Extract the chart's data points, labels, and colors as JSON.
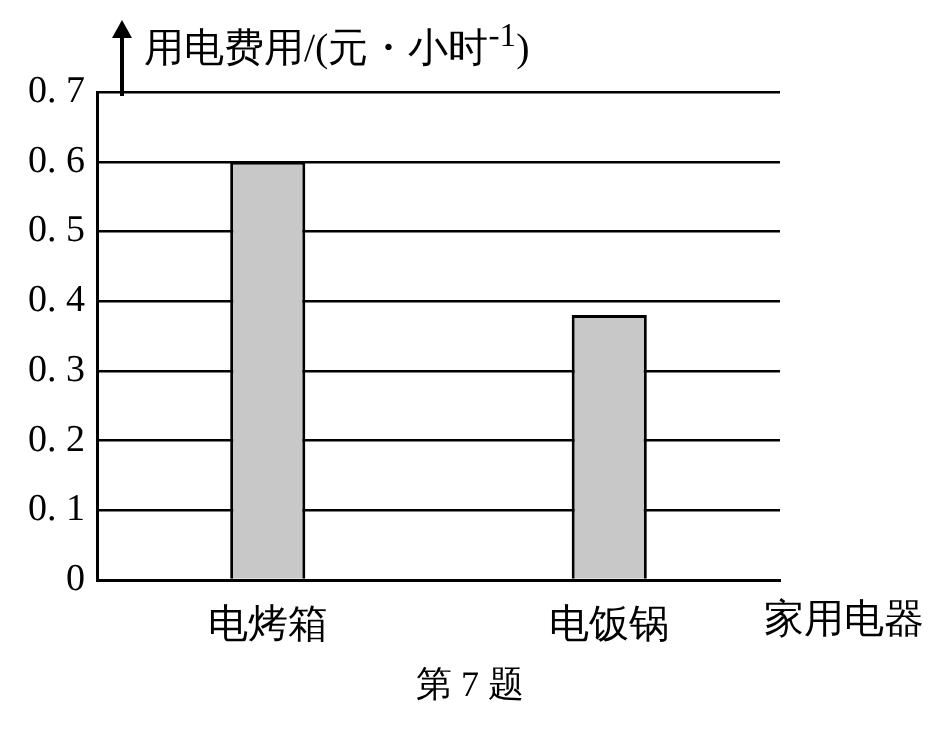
{
  "chart_data": {
    "type": "bar",
    "ylabel": "用电费用/(元・小时$^{-1}$)",
    "xlabel": "家用电器",
    "annotations": [
      "第 7 题"
    ],
    "categories": [
      "电烤箱",
      "电饭锅"
    ],
    "values": [
      0.6,
      0.38
    ],
    "color": "#c8c8c8",
    "ylim": [
      0,
      0.7
    ],
    "yticks": [
      0,
      0.1,
      0.2,
      0.3,
      0.4,
      0.5,
      0.6,
      0.7
    ],
    "grid": "y",
    "legend": false
  }
}
